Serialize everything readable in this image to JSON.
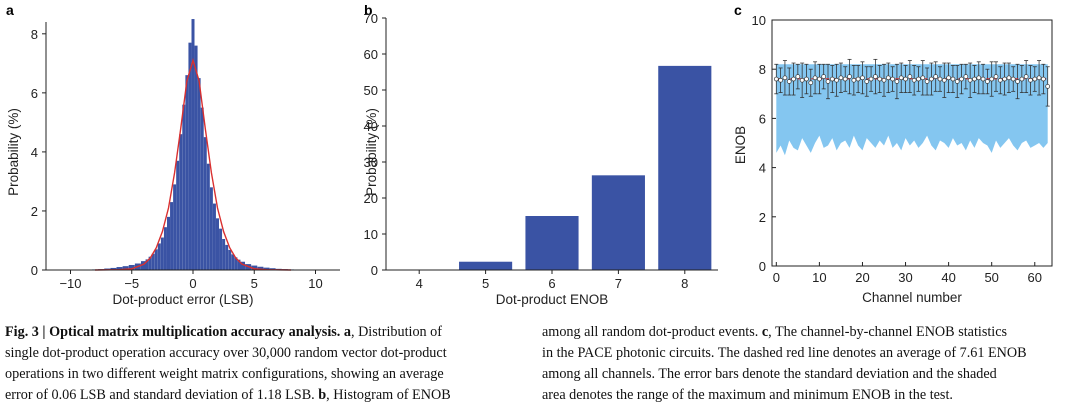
{
  "figure": {
    "panels": {
      "a": {
        "letter": "a"
      },
      "b": {
        "letter": "b"
      },
      "c": {
        "letter": "c"
      }
    },
    "caption": {
      "left_lines": [
        [
          {
            "t": "Fig. 3 | Optical matrix multiplication accuracy analysis. ",
            "b": true
          },
          {
            "t": "a",
            "b": true
          },
          {
            "t": ", Distribution of",
            "b": false
          }
        ],
        [
          {
            "t": "single dot-product operation accuracy over 30,000 random vector dot-product",
            "b": false
          }
        ],
        [
          {
            "t": "operations in two different weight matrix configurations, showing an average",
            "b": false
          }
        ],
        [
          {
            "t": "error of 0.06 LSB and standard deviation of 1.18 LSB. ",
            "b": false
          },
          {
            "t": "b",
            "b": true
          },
          {
            "t": ", Histogram of ENOB",
            "b": false
          }
        ]
      ],
      "right_lines": [
        [
          {
            "t": "among all random dot-product events. ",
            "b": false
          },
          {
            "t": "c",
            "b": true
          },
          {
            "t": ", The channel-by-channel ENOB statistics",
            "b": false
          }
        ],
        [
          {
            "t": "in the PACE photonic circuits. The dashed red line denotes an average of 7.61 ENOB",
            "b": false
          }
        ],
        [
          {
            "t": "among all channels. The error bars denote the standard deviation and the shaded",
            "b": false
          }
        ],
        [
          {
            "t": "area denotes the range of the maximum and minimum ENOB in the test.",
            "b": false
          }
        ]
      ]
    }
  },
  "chart_data": [
    {
      "panel": "a",
      "type": "bar",
      "xlabel": "Dot-product error (LSB)",
      "ylabel": "Probability (%)",
      "xlim": [
        -12,
        12
      ],
      "ylim": [
        0,
        8.4
      ],
      "xticks": [
        -10,
        -5,
        0,
        5,
        10
      ],
      "yticks": [
        0,
        2,
        4,
        6,
        8
      ],
      "bar_color": "#3a53a4",
      "fit_color": "#d93030",
      "histogram": {
        "bin_centers": [
          -8,
          -7.5,
          -7,
          -6.5,
          -6,
          -5.5,
          -5,
          -4.5,
          -4,
          -3.75,
          -3.5,
          -3.25,
          -3,
          -2.75,
          -2.5,
          -2.25,
          -2,
          -1.75,
          -1.5,
          -1.25,
          -1,
          -0.75,
          -0.5,
          -0.25,
          0,
          0.25,
          0.5,
          0.75,
          1,
          1.25,
          1.5,
          1.75,
          2,
          2.25,
          2.5,
          2.75,
          3,
          3.25,
          3.5,
          3.75,
          4,
          4.5,
          5,
          5.5,
          6,
          6.5,
          7,
          7.5,
          8
        ],
        "values": [
          0.02,
          0.03,
          0.05,
          0.07,
          0.1,
          0.13,
          0.17,
          0.22,
          0.3,
          0.36,
          0.45,
          0.55,
          0.7,
          0.9,
          1.1,
          1.45,
          1.8,
          2.3,
          2.9,
          3.7,
          4.6,
          5.6,
          6.6,
          7.7,
          8.5,
          7.6,
          6.5,
          5.5,
          4.5,
          3.6,
          2.8,
          2.25,
          1.75,
          1.4,
          1.05,
          0.85,
          0.68,
          0.53,
          0.43,
          0.35,
          0.28,
          0.2,
          0.15,
          0.11,
          0.08,
          0.06,
          0.04,
          0.03,
          0.02
        ]
      },
      "fit_curve": {
        "x": [
          -8,
          -6,
          -5,
          -4,
          -3.5,
          -3,
          -2.5,
          -2,
          -1.5,
          -1,
          -0.5,
          0,
          0.5,
          1,
          1.5,
          2,
          2.5,
          3,
          3.5,
          4,
          5,
          6,
          8
        ],
        "y": [
          0,
          0.01,
          0.04,
          0.2,
          0.4,
          0.75,
          1.3,
          2.1,
          3.3,
          4.8,
          6.4,
          7.1,
          6.4,
          4.8,
          3.3,
          2.1,
          1.3,
          0.75,
          0.4,
          0.2,
          0.04,
          0.01,
          0
        ]
      }
    },
    {
      "panel": "b",
      "type": "bar",
      "xlabel": "Dot-product ENOB",
      "ylabel": "Probability (%)",
      "ylim": [
        0,
        70
      ],
      "yticks": [
        0,
        10,
        20,
        30,
        40,
        50,
        60,
        70
      ],
      "categories": [
        "4",
        "5",
        "6",
        "7",
        "8"
      ],
      "values": [
        0,
        2.3,
        15,
        26.3,
        56.7
      ],
      "bar_color": "#3a53a4"
    },
    {
      "panel": "c",
      "type": "scatter",
      "xlabel": "Channel number",
      "ylabel": "ENOB",
      "xlim": [
        -1,
        64
      ],
      "ylim": [
        0,
        10
      ],
      "xticks": [
        0,
        10,
        20,
        30,
        40,
        50,
        60
      ],
      "yticks": [
        0,
        2,
        4,
        6,
        8,
        10
      ],
      "mean_line": 7.61,
      "shade_color": "#84c6f0",
      "channels": 64,
      "mean_values": [
        7.6,
        7.55,
        7.65,
        7.5,
        7.6,
        7.7,
        7.55,
        7.6,
        7.45,
        7.65,
        7.6,
        7.7,
        7.5,
        7.6,
        7.55,
        7.65,
        7.6,
        7.7,
        7.55,
        7.6,
        7.65,
        7.5,
        7.6,
        7.7,
        7.6,
        7.55,
        7.65,
        7.6,
        7.5,
        7.65,
        7.6,
        7.7,
        7.55,
        7.6,
        7.65,
        7.5,
        7.6,
        7.7,
        7.6,
        7.55,
        7.65,
        7.6,
        7.5,
        7.6,
        7.7,
        7.55,
        7.6,
        7.65,
        7.6,
        7.5,
        7.6,
        7.7,
        7.55,
        7.6,
        7.65,
        7.6,
        7.5,
        7.6,
        7.7,
        7.55,
        7.6,
        7.65,
        7.6,
        7.3
      ],
      "std_values": [
        0.6,
        0.5,
        0.7,
        0.55,
        0.65,
        0.5,
        0.7,
        0.6,
        0.55,
        0.65,
        0.6,
        0.5,
        0.7,
        0.55,
        0.65,
        0.6,
        0.5,
        0.7,
        0.6,
        0.55,
        0.65,
        0.6,
        0.5,
        0.7,
        0.55,
        0.65,
        0.6,
        0.5,
        0.7,
        0.6,
        0.55,
        0.65,
        0.6,
        0.5,
        0.7,
        0.55,
        0.65,
        0.6,
        0.5,
        0.7,
        0.6,
        0.55,
        0.65,
        0.6,
        0.5,
        0.7,
        0.55,
        0.65,
        0.6,
        0.5,
        0.7,
        0.6,
        0.55,
        0.65,
        0.6,
        0.5,
        0.7,
        0.55,
        0.65,
        0.6,
        0.5,
        0.7,
        0.6,
        0.8
      ],
      "max_values": [
        8.2,
        8.2,
        8.2,
        8.2,
        8.2,
        8.2,
        8.2,
        8.2,
        8.2,
        8.2,
        8.2,
        8.2,
        8.2,
        8.2,
        8.2,
        8.2,
        8.2,
        8.2,
        8.2,
        8.2,
        8.2,
        8.2,
        8.2,
        8.2,
        8.2,
        8.2,
        8.2,
        8.2,
        8.2,
        8.2,
        8.2,
        8.2,
        8.2,
        8.2,
        8.2,
        8.2,
        8.2,
        8.2,
        8.2,
        8.2,
        8.2,
        8.2,
        8.2,
        8.2,
        8.2,
        8.2,
        8.2,
        8.2,
        8.2,
        8.2,
        8.2,
        8.2,
        8.2,
        8.2,
        8.2,
        8.2,
        8.2,
        8.2,
        8.2,
        8.2,
        8.2,
        8.2,
        8.2,
        8.2
      ],
      "min_values": [
        4.6,
        4.9,
        4.5,
        5.1,
        4.8,
        4.7,
        5.2,
        4.9,
        4.6,
        5.0,
        5.3,
        4.8,
        4.9,
        5.2,
        4.7,
        5.0,
        5.1,
        4.8,
        5.3,
        4.9,
        4.7,
        5.2,
        5.0,
        4.8,
        5.1,
        4.9,
        5.3,
        4.8,
        5.0,
        4.7,
        5.2,
        4.9,
        5.1,
        4.8,
        5.0,
        5.3,
        4.9,
        4.7,
        5.1,
        5.0,
        4.8,
        5.2,
        4.9,
        5.0,
        4.7,
        5.1,
        4.8,
        5.2,
        5.0,
        4.9,
        4.6,
        5.1,
        4.8,
        5.0,
        5.2,
        4.9,
        4.7,
        5.0,
        5.1,
        4.8,
        4.9,
        5.0,
        4.8,
        5.0
      ]
    }
  ]
}
